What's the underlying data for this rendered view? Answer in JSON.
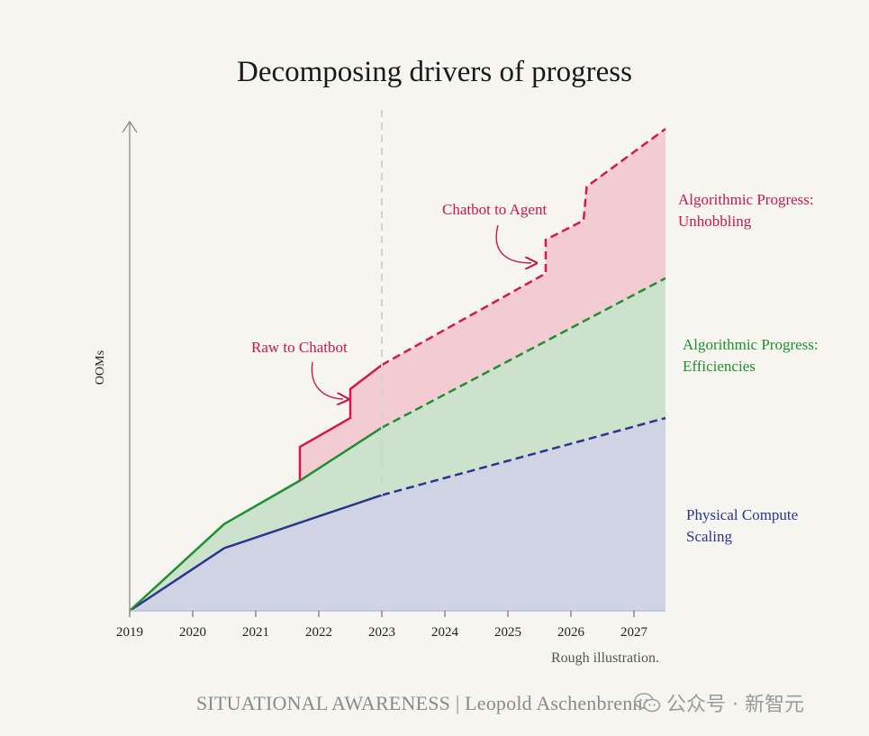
{
  "title": "Decomposing drivers of progress",
  "chart_data": {
    "type": "area",
    "title": "Decomposing drivers of progress",
    "xlabel": "",
    "ylabel": "OOMs",
    "x_ticks": [
      2019,
      2020,
      2021,
      2022,
      2023,
      2024,
      2025,
      2026,
      2027
    ],
    "xlim": [
      2019,
      2027.5
    ],
    "ylim": [
      0,
      10
    ],
    "present_marker": 2023,
    "grid": false,
    "solid_until": 2023,
    "series": [
      {
        "name": "Physical Compute Scaling",
        "color": "#2a3590",
        "fill": "#cfd3e3",
        "points": [
          [
            2019,
            0
          ],
          [
            2020.5,
            1.3
          ],
          [
            2023,
            2.4
          ],
          [
            2027.5,
            4.0
          ]
        ]
      },
      {
        "name": "Algorithmic Progress: Efficiencies",
        "color": "#1f8f2f",
        "fill": "#cce2cc",
        "points": [
          [
            2019,
            0
          ],
          [
            2020.5,
            1.8
          ],
          [
            2021.7,
            2.7
          ],
          [
            2023,
            3.8
          ],
          [
            2027.5,
            6.9
          ]
        ]
      },
      {
        "name": "Algorithmic Progress: Unhobbling",
        "color": "#d4184c",
        "fill": "#f3cbd3",
        "points": [
          [
            2021.7,
            2.7
          ],
          [
            2021.7,
            3.4
          ],
          [
            2022.5,
            4.0
          ],
          [
            2022.5,
            4.6
          ],
          [
            2023,
            5.1
          ],
          [
            2025.6,
            7.0
          ],
          [
            2025.6,
            7.7
          ],
          [
            2026.2,
            8.1
          ],
          [
            2026.25,
            8.8
          ],
          [
            2027.5,
            10.0
          ]
        ]
      }
    ],
    "annotations": [
      {
        "text": "Raw to Chatbot",
        "target_x": 2022.5
      },
      {
        "text": "Chatbot to Agent",
        "target_x": 2025.6
      }
    ],
    "series_labels": [
      {
        "line1": "Algorithmic Progress:",
        "line2": "Unhobbling",
        "color": "#d4184c"
      },
      {
        "line1": "Algorithmic Progress:",
        "line2": "Efficiencies",
        "color": "#1f8f2f"
      },
      {
        "line1": "Physical Compute",
        "line2": "Scaling",
        "color": "#2a3590"
      }
    ]
  },
  "note": "Rough illustration.",
  "source": "SITUATIONAL AWARENESS | Leopold Aschenbrenner",
  "watermark": "公众号 · 新智元"
}
